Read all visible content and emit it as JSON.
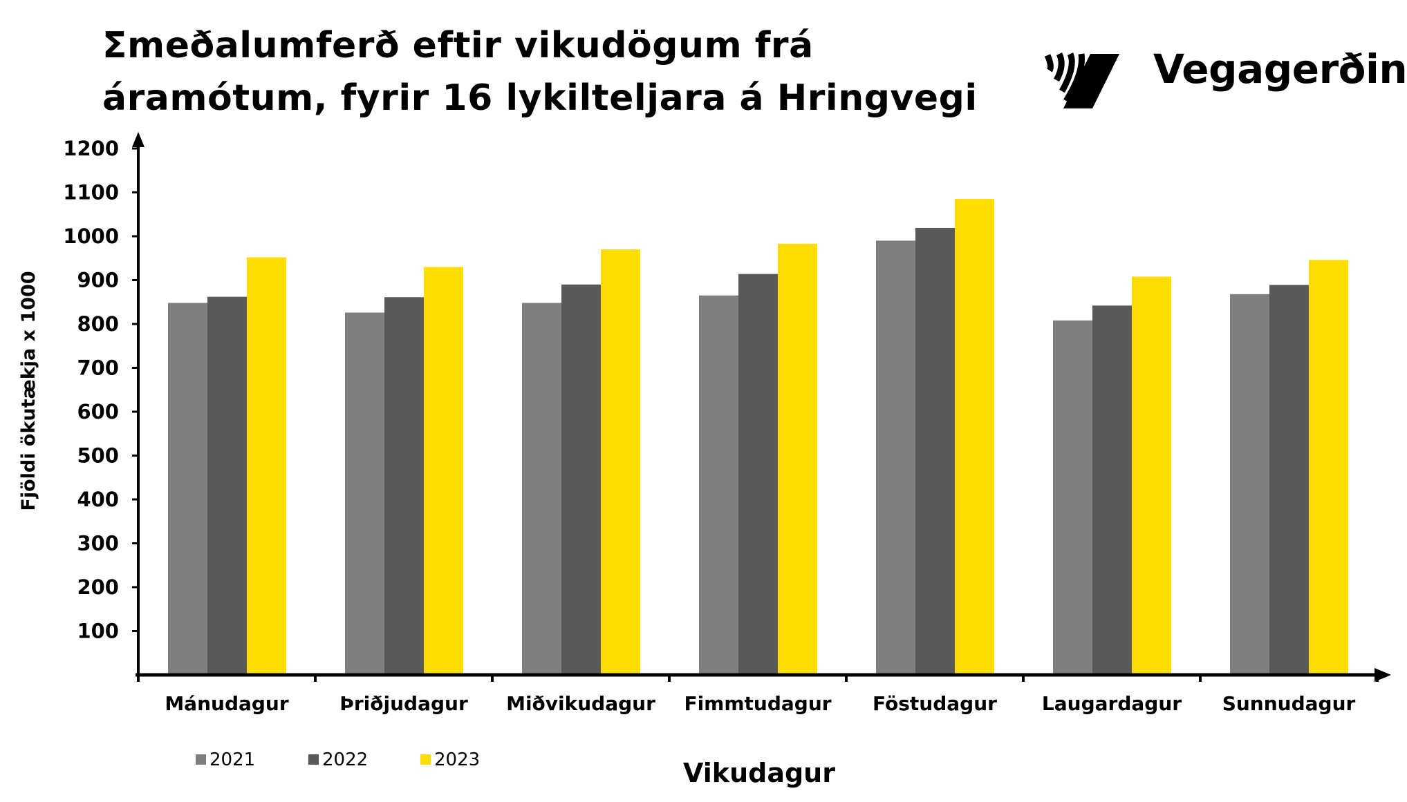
{
  "title_line1": "Σmeðalumferð eftir vikudögum frá",
  "title_line2": "áramótum, fyrir 16 lykilteljara á Hringvegi",
  "logo_text": "Vegagerðin",
  "chart_data": {
    "type": "bar",
    "title": "Σmeðalumferð eftir vikudögum frá áramótum, fyrir 16 lykilteljara á Hringvegi",
    "xlabel": "Vikudagur",
    "ylabel": "Fjöldi ökutækja x 1000",
    "ylim": [
      0,
      1200
    ],
    "yticks": [
      100,
      200,
      300,
      400,
      500,
      600,
      700,
      800,
      900,
      1000,
      1100,
      1200
    ],
    "grid": false,
    "legend": "bottom-left",
    "categories": [
      "Mánudagur",
      "Þriðjudagur",
      "Miðvikudagur",
      "Fimmtudagur",
      "Föstudagur",
      "Laugardagur",
      "Sunnudagur"
    ],
    "series": [
      {
        "name": "2021",
        "color": "#7f7f7f",
        "values": [
          848,
          826,
          848,
          865,
          990,
          808,
          868
        ]
      },
      {
        "name": "2022",
        "color": "#595959",
        "values": [
          862,
          861,
          890,
          914,
          1019,
          842,
          889
        ]
      },
      {
        "name": "2023",
        "color": "#ffdd00",
        "values": [
          952,
          930,
          970,
          983,
          1085,
          908,
          946
        ]
      }
    ]
  }
}
